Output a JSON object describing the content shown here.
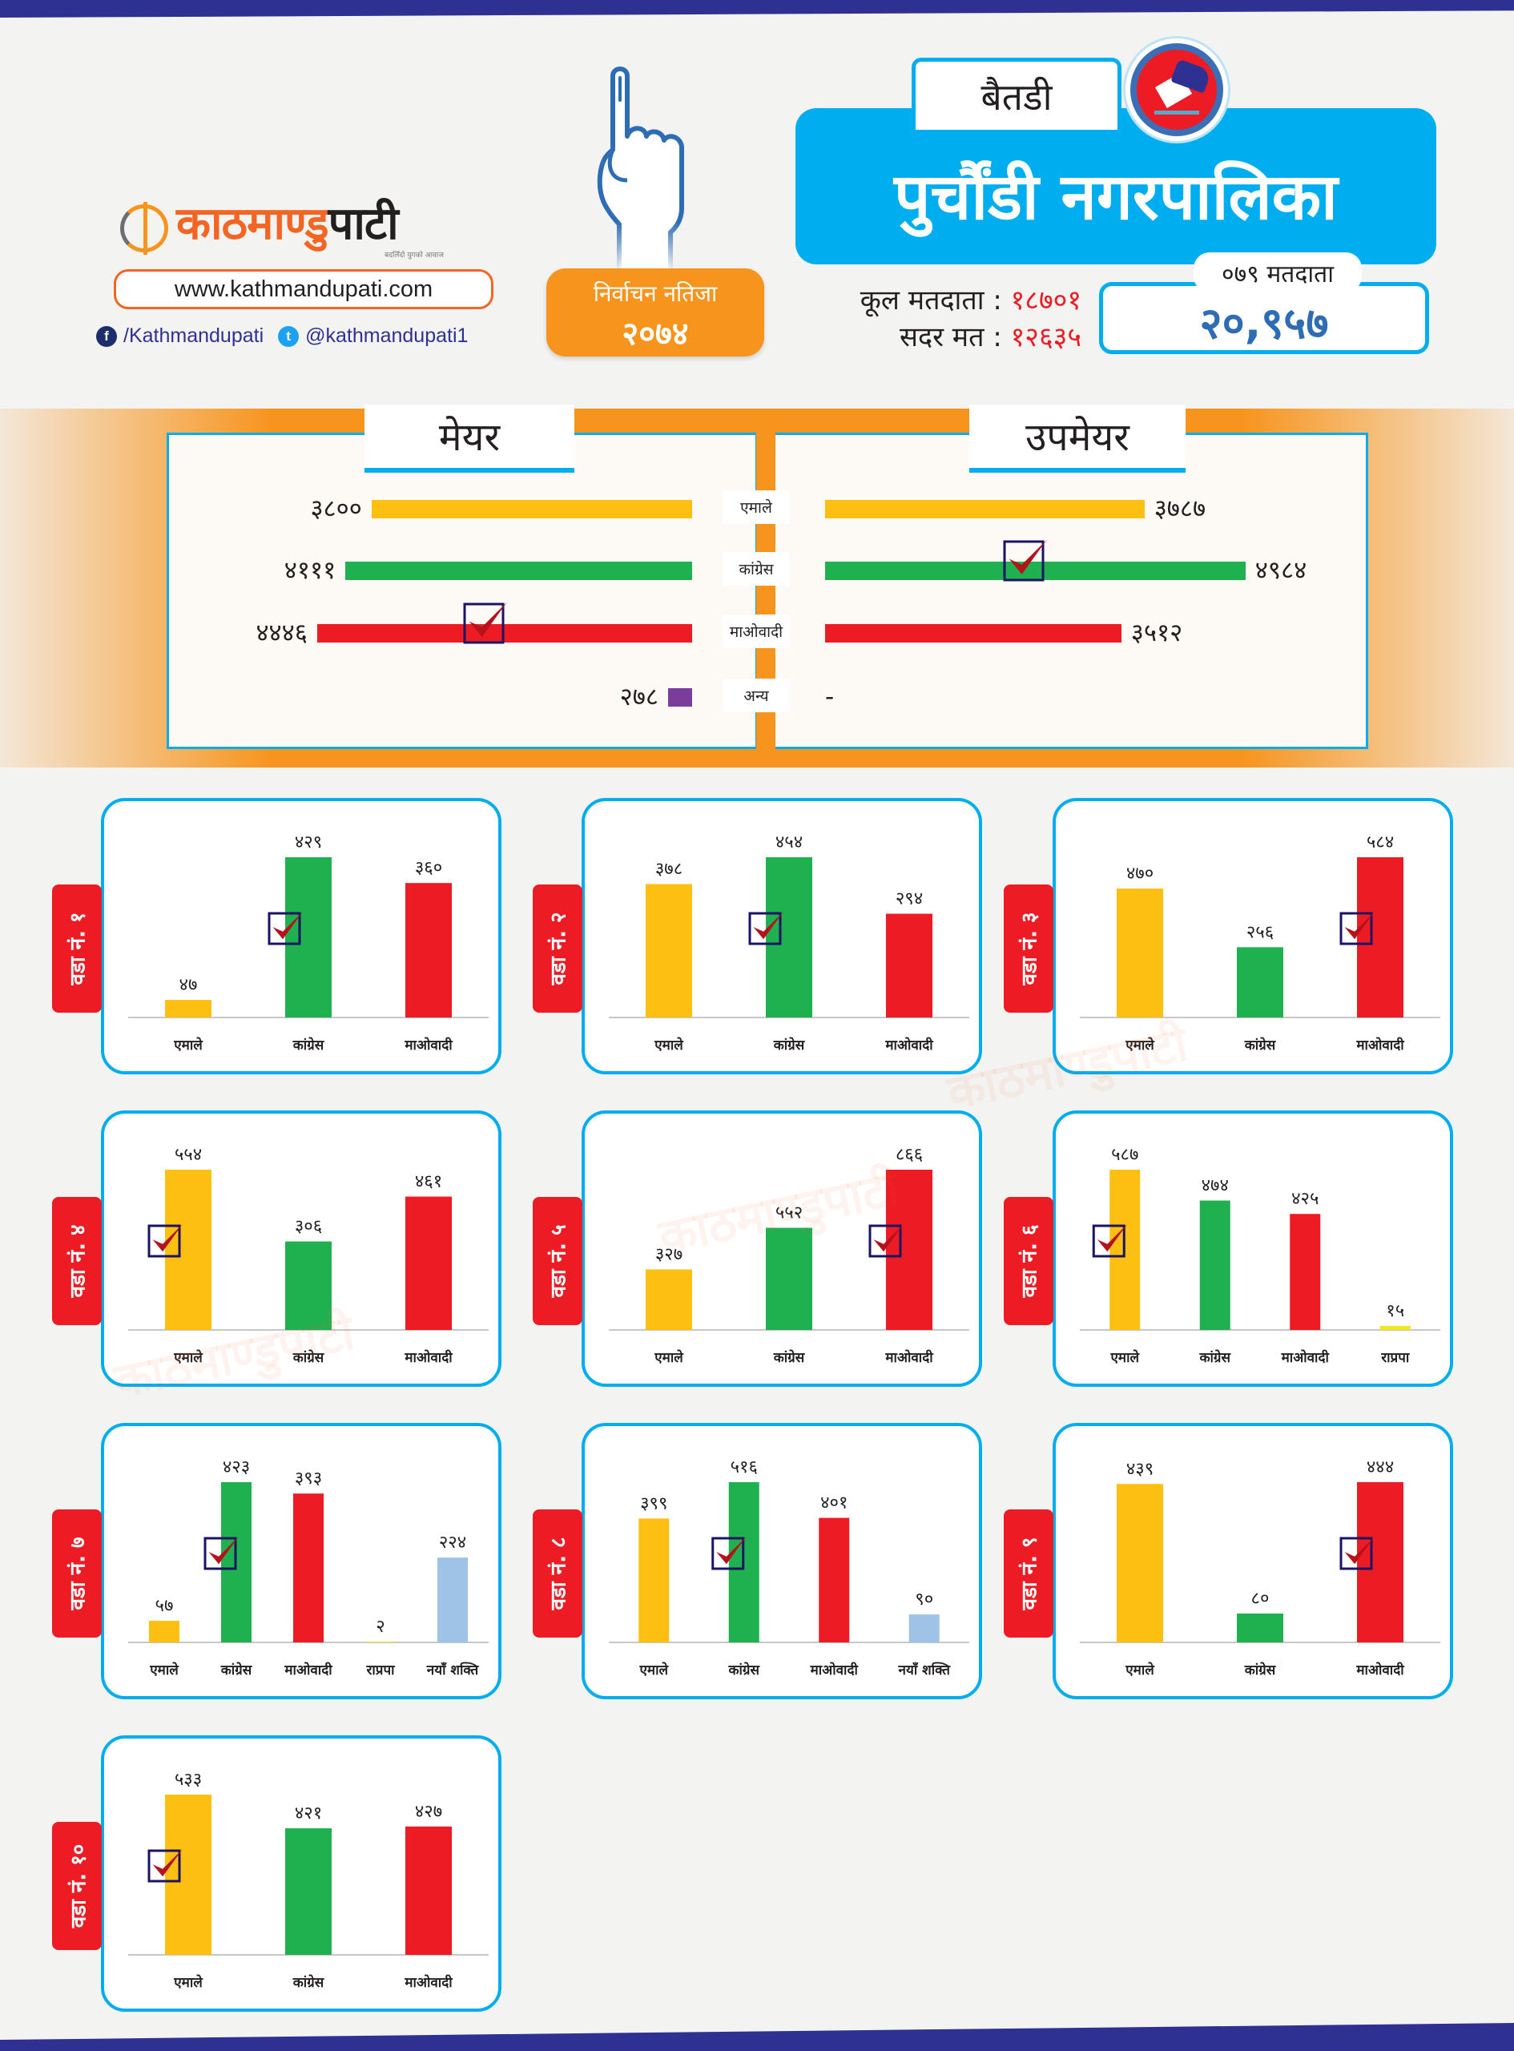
{
  "header": {
    "brand": {
      "name_orange": "काठमाण्डु",
      "name_dark": "पाटी",
      "tagline": "बदलिँदो युगको आवाज"
    },
    "website": "www.kathmandupati.com",
    "social": {
      "facebook": "/Kathmandupati",
      "twitter": "@kathmandupati1"
    },
    "badge": {
      "line1": "निर्वाचन नतिजा",
      "line2": "२०७४"
    },
    "district": "बैतडी",
    "municipality": "पुर्चौंडी नगरपालिका",
    "stats": {
      "total_voters_label": "कूल मतदाता :",
      "total_voters": "१८७०१",
      "valid_votes_label": "सदर मत :",
      "valid_votes": "१२६३५"
    },
    "voters_079": {
      "label": "०७९ मतदाता",
      "value": "२०,९५७"
    }
  },
  "colors": {
    "uml": "#fdbf12",
    "congress": "#1fb050",
    "maoist": "#ed1c24",
    "rpp": "#f5e51b",
    "naya_shakti": "#9fc3e7",
    "other": "#7a3d9b",
    "accent_blue": "#00aeef",
    "accent_orange": "#f7941d",
    "navy": "#2e3192"
  },
  "mayor_section": {
    "mayor_title": "मेयर",
    "deputy_title": "उपमेयर",
    "parties": [
      {
        "key": "uml",
        "label": "एमाले",
        "mayor": 3800,
        "mayor_text": "३८००",
        "deputy": 3787,
        "deputy_text": "३७८७",
        "mayor_win": false,
        "deputy_win": false
      },
      {
        "key": "congress",
        "label": "कांग्रेस",
        "mayor": 4111,
        "mayor_text": "४१११",
        "deputy": 4984,
        "deputy_text": "४९८४",
        "mayor_win": false,
        "deputy_win": true
      },
      {
        "key": "maoist",
        "label": "माओवादी",
        "mayor": 4446,
        "mayor_text": "४४४६",
        "deputy": 3512,
        "deputy_text": "३५१२",
        "mayor_win": true,
        "deputy_win": false
      },
      {
        "key": "other",
        "label": "अन्य",
        "mayor": 278,
        "mayor_text": "२७८",
        "deputy": null,
        "deputy_text": "-",
        "mayor_win": false,
        "deputy_win": false
      }
    ]
  },
  "chart_data": [
    {
      "type": "bar",
      "title": "मेयर",
      "orientation": "horizontal",
      "categories": [
        "एमाले",
        "कांग्रेस",
        "माओवादी",
        "अन्य"
      ],
      "values": [
        3800,
        4111,
        4446,
        278
      ],
      "winner": "माओवादी"
    },
    {
      "type": "bar",
      "title": "उपमेयर",
      "orientation": "horizontal",
      "categories": [
        "एमाले",
        "कांग्रेस",
        "माओवादी",
        "अन्य"
      ],
      "values": [
        3787,
        4984,
        3512,
        null
      ],
      "winner": "कांग्रेस"
    },
    {
      "type": "bar",
      "title": "वडा नं. १",
      "categories": [
        "एमाले",
        "कांग्रेस",
        "माओवादी"
      ],
      "keys": [
        "uml",
        "congress",
        "maoist"
      ],
      "values": [
        47,
        429,
        360
      ],
      "labels": [
        "४७",
        "४२९",
        "३६०"
      ],
      "winner_index": 1
    },
    {
      "type": "bar",
      "title": "वडा नं. २",
      "categories": [
        "एमाले",
        "कांग्रेस",
        "माओवादी"
      ],
      "keys": [
        "uml",
        "congress",
        "maoist"
      ],
      "values": [
        378,
        454,
        294
      ],
      "labels": [
        "३७८",
        "४५४",
        "२९४"
      ],
      "winner_index": 1
    },
    {
      "type": "bar",
      "title": "वडा नं. ३",
      "categories": [
        "एमाले",
        "कांग्रेस",
        "माओवादी"
      ],
      "keys": [
        "uml",
        "congress",
        "maoist"
      ],
      "values": [
        470,
        256,
        584
      ],
      "labels": [
        "४७०",
        "२५६",
        "५८४"
      ],
      "winner_index": 2
    },
    {
      "type": "bar",
      "title": "वडा नं. ४",
      "categories": [
        "एमाले",
        "कांग्रेस",
        "माओवादी"
      ],
      "keys": [
        "uml",
        "congress",
        "maoist"
      ],
      "values": [
        554,
        306,
        461
      ],
      "labels": [
        "५५४",
        "३०६",
        "४६१"
      ],
      "winner_index": 0
    },
    {
      "type": "bar",
      "title": "वडा नं. ५",
      "categories": [
        "एमाले",
        "कांग्रेस",
        "माओवादी"
      ],
      "keys": [
        "uml",
        "congress",
        "maoist"
      ],
      "values": [
        327,
        552,
        866
      ],
      "labels": [
        "३२७",
        "५५२",
        "८६६"
      ],
      "winner_index": 2
    },
    {
      "type": "bar",
      "title": "वडा नं. ६",
      "categories": [
        "एमाले",
        "कांग्रेस",
        "माओवादी",
        "राप्रपा"
      ],
      "keys": [
        "uml",
        "congress",
        "maoist",
        "rpp"
      ],
      "values": [
        587,
        474,
        425,
        15
      ],
      "labels": [
        "५८७",
        "४७४",
        "४२५",
        "१५"
      ],
      "winner_index": 0
    },
    {
      "type": "bar",
      "title": "वडा नं. ७",
      "categories": [
        "एमाले",
        "कांग्रेस",
        "माओवादी",
        "राप्रपा",
        "नयाँ शक्ति"
      ],
      "keys": [
        "uml",
        "congress",
        "maoist",
        "rpp",
        "naya_shakti"
      ],
      "values": [
        57,
        423,
        393,
        2,
        224
      ],
      "labels": [
        "५७",
        "४२३",
        "३९३",
        "२",
        "२२४"
      ],
      "winner_index": 1
    },
    {
      "type": "bar",
      "title": "वडा नं. ८",
      "categories": [
        "एमाले",
        "कांग्रेस",
        "माओवादी",
        "नयाँ शक्ति"
      ],
      "keys": [
        "uml",
        "congress",
        "maoist",
        "naya_shakti"
      ],
      "values": [
        399,
        516,
        401,
        90
      ],
      "labels": [
        "३९९",
        "५१६",
        "४०१",
        "९०"
      ],
      "winner_index": 1
    },
    {
      "type": "bar",
      "title": "वडा नं. ९",
      "categories": [
        "एमाले",
        "कांग्रेस",
        "माओवादी"
      ],
      "keys": [
        "uml",
        "congress",
        "maoist"
      ],
      "values": [
        439,
        80,
        444
      ],
      "labels": [
        "४३९",
        "८०",
        "४४४"
      ],
      "winner_index": 2
    },
    {
      "type": "bar",
      "title": "वडा नं. १०",
      "categories": [
        "एमाले",
        "कांग्रेस",
        "माओवादी"
      ],
      "keys": [
        "uml",
        "congress",
        "maoist"
      ],
      "values": [
        533,
        421,
        427
      ],
      "labels": [
        "५३३",
        "४२१",
        "४२७"
      ],
      "winner_index": 0
    }
  ]
}
